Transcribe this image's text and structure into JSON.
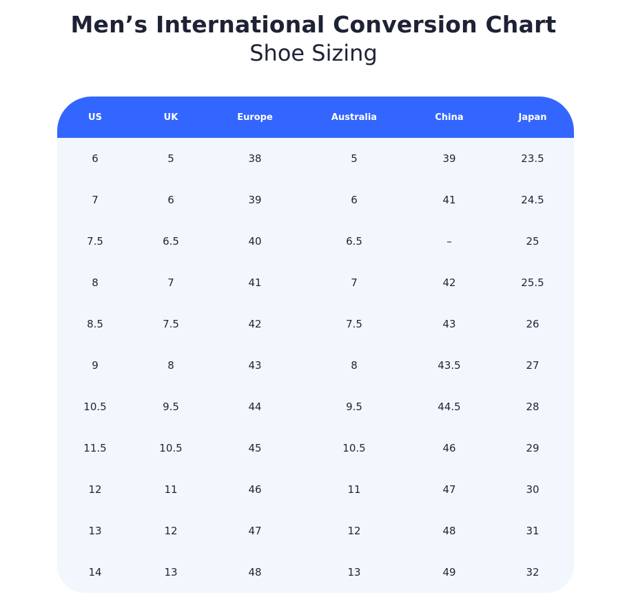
{
  "title": "Men’s International Conversion Chart",
  "subtitle": "Shoe Sizing",
  "colors": {
    "header": "#3366ff",
    "body": "#f2f7fd",
    "text": "#1e2235"
  },
  "table": {
    "headers": [
      "US",
      "UK",
      "Europe",
      "Australia",
      "China",
      "Japan"
    ],
    "rows": [
      [
        "6",
        "5",
        "38",
        "5",
        "39",
        "23.5"
      ],
      [
        "7",
        "6",
        "39",
        "6",
        "41",
        "24.5"
      ],
      [
        "7.5",
        "6.5",
        "40",
        "6.5",
        "–",
        "25"
      ],
      [
        "8",
        "7",
        "41",
        "7",
        "42",
        "25.5"
      ],
      [
        "8.5",
        "7.5",
        "42",
        "7.5",
        "43",
        "26"
      ],
      [
        "9",
        "8",
        "43",
        "8",
        "43.5",
        "27"
      ],
      [
        "10.5",
        "9.5",
        "44",
        "9.5",
        "44.5",
        "28"
      ],
      [
        "11.5",
        "10.5",
        "45",
        "10.5",
        "46",
        "29"
      ],
      [
        "12",
        "11",
        "46",
        "11",
        "47",
        "30"
      ],
      [
        "13",
        "12",
        "47",
        "12",
        "48",
        "31"
      ],
      [
        "14",
        "13",
        "48",
        "13",
        "49",
        "32"
      ]
    ]
  }
}
